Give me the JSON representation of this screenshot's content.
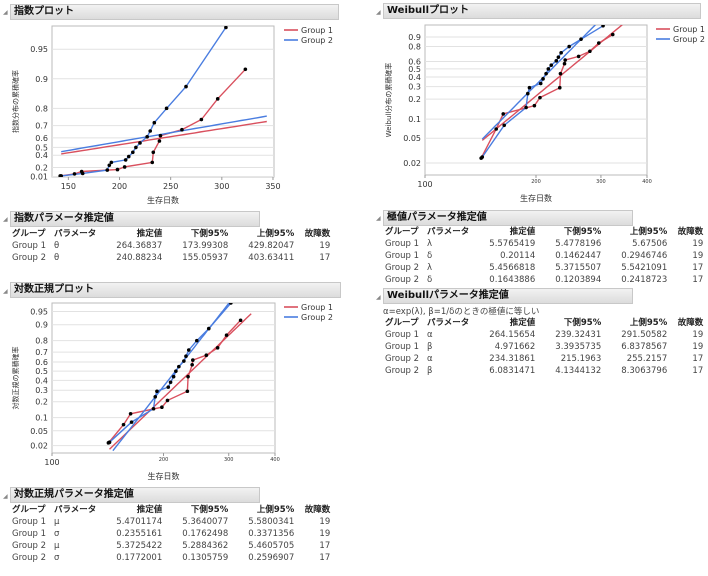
{
  "panels": {
    "exp_plot_title": "指数プロット",
    "exp_params_title": "指数パラメータ推定値",
    "lognorm_plot_title": "対数正規プロット",
    "lognorm_params_title": "対数正規パラメータ推定値",
    "weibull_plot_title": "Weibullプロット",
    "extreme_params_title": "極値パラメータ推定値",
    "weibull_params_title": "Weibullパラメータ推定値",
    "weibull_note": "α=exp(λ), β=1/δのときの極値に等しい"
  },
  "table_headers": [
    "グループ",
    "パラメータ",
    "推定値",
    "下側95%",
    "上側95%",
    "故障数"
  ],
  "exp_params": [
    [
      "Group 1",
      "θ",
      "264.36837",
      "173.99308",
      "429.82047",
      "19"
    ],
    [
      "Group 2",
      "θ",
      "240.88234",
      "155.05937",
      "403.63411",
      "17"
    ]
  ],
  "lognorm_params": [
    [
      "Group 1",
      "μ",
      "5.4701174",
      "5.3640077",
      "5.5800341",
      "19"
    ],
    [
      "Group 1",
      "σ",
      "0.2355161",
      "0.1762498",
      "0.3371356",
      "19"
    ],
    [
      "Group 2",
      "μ",
      "5.3725422",
      "5.2884362",
      "5.4605705",
      "17"
    ],
    [
      "Group 2",
      "σ",
      "0.1772001",
      "0.1305759",
      "0.2596907",
      "17"
    ]
  ],
  "extreme_params": [
    [
      "Group 1",
      "λ",
      "5.5765419",
      "5.4778196",
      "5.67506",
      "19"
    ],
    [
      "Group 1",
      "δ",
      "0.20114",
      "0.1462447",
      "0.2946746",
      "19"
    ],
    [
      "Group 2",
      "λ",
      "5.4566818",
      "5.3715507",
      "5.5421091",
      "17"
    ],
    [
      "Group 2",
      "δ",
      "0.1643886",
      "0.1203894",
      "0.2418723",
      "17"
    ]
  ],
  "weibull_params": [
    [
      "Group 1",
      "α",
      "264.15654",
      "239.32431",
      "291.50582",
      "19"
    ],
    [
      "Group 1",
      "β",
      "4.971662",
      "3.3935735",
      "6.8378567",
      "19"
    ],
    [
      "Group 2",
      "α",
      "234.31861",
      "215.1963",
      "255.2157",
      "17"
    ],
    [
      "Group 2",
      "β",
      "6.0831471",
      "4.1344132",
      "8.3063796",
      "17"
    ]
  ],
  "chart_data": [
    {
      "type": "line",
      "title": "指数プロット",
      "xlabel": "生存日数",
      "ylabel": "指数分布の累積確率",
      "x_scale": "linear",
      "y_scale": "exponential probability",
      "xlim": [
        134,
        351
      ],
      "ylim": [
        0,
        0.971
      ],
      "x_ticks": [
        "150",
        "200",
        "250",
        "300",
        "350"
      ],
      "y_ticks": [
        "0.01",
        "0.2",
        "0.4",
        "0.5",
        "0.6",
        "0.7",
        "0.8",
        "0.9",
        "0.95"
      ],
      "legend": "right",
      "grid": true,
      "fits": [
        {
          "name": "Group 1",
          "theta": 264.36837,
          "range": [
            143,
            344
          ]
        },
        {
          "name": "Group 2",
          "theta": 240.88234,
          "range": [
            143,
            344
          ]
        }
      ]
    },
    {
      "type": "line",
      "title": "対数正規プロット",
      "xlabel": "生存日数",
      "ylabel": "対数正規の累積確率",
      "x_scale": "log",
      "y_scale": "normal probability",
      "xlim": [
        100,
        400
      ],
      "ylim": [
        0.012,
        0.97
      ],
      "x_ticks": [
        "100",
        "200",
        "300",
        "400"
      ],
      "y_ticks": [
        "0.02",
        "0.05",
        "0.1",
        "0.2",
        "0.3",
        "0.4",
        "0.5",
        "0.6",
        "0.7",
        "0.8",
        "0.9",
        "0.95"
      ],
      "legend": "right",
      "grid": true,
      "fits": [
        {
          "name": "Group 1",
          "mu": 5.4701174,
          "sigma": 0.2355161,
          "range": [
            143,
            345
          ]
        },
        {
          "name": "Group 2",
          "mu": 5.3725422,
          "sigma": 0.1772001,
          "range": [
            146,
            306
          ]
        }
      ]
    },
    {
      "type": "line",
      "title": "Weibullプロット",
      "xlabel": "生存日数",
      "ylabel": "Weibull分布の累積確率",
      "x_scale": "log",
      "y_scale": "weibull probability",
      "xlim": [
        100,
        400
      ],
      "ylim": [
        0.0128,
        0.973
      ],
      "x_ticks": [
        "100",
        "200",
        "300",
        "400"
      ],
      "y_ticks": [
        "0.02",
        "0.05",
        "0.1",
        "0.2",
        "0.3",
        "0.4",
        "0.5",
        "0.6",
        "0.8",
        "0.9"
      ],
      "legend": "right",
      "grid": true,
      "fits": [
        {
          "name": "Group 1",
          "alpha": 264.15654,
          "beta": 4.971662,
          "range": [
            143,
            345
          ]
        },
        {
          "name": "Group 2",
          "alpha": 234.31861,
          "beta": 6.0831471,
          "range": [
            143,
            300
          ]
        }
      ]
    }
  ],
  "series": [
    {
      "name": "Group 1",
      "color": "#d9505e",
      "points": [
        [
          142,
          0.024
        ],
        [
          156,
          0.07
        ],
        [
          163,
          0.12
        ],
        [
          198,
          0.16
        ],
        [
          205,
          0.21
        ],
        [
          232,
          0.29
        ],
        [
          233,
          0.44
        ],
        [
          239,
          0.57
        ],
        [
          240,
          0.62
        ],
        [
          261,
          0.67
        ],
        [
          280,
          0.74
        ],
        [
          296,
          0.84
        ],
        [
          323,
          0.92
        ]
      ]
    },
    {
      "name": "Group 2",
      "color": "#4a7de0",
      "points": [
        [
          143,
          0.025
        ],
        [
          164,
          0.08
        ],
        [
          188,
          0.15
        ],
        [
          190,
          0.24
        ],
        [
          192,
          0.29
        ],
        [
          206,
          0.33
        ],
        [
          209,
          0.38
        ],
        [
          213,
          0.44
        ],
        [
          216,
          0.5
        ],
        [
          220,
          0.55
        ],
        [
          227,
          0.61
        ],
        [
          230,
          0.66
        ],
        [
          234,
          0.72
        ],
        [
          246,
          0.8
        ],
        [
          265,
          0.88
        ],
        [
          304,
          0.97
        ]
      ]
    }
  ]
}
